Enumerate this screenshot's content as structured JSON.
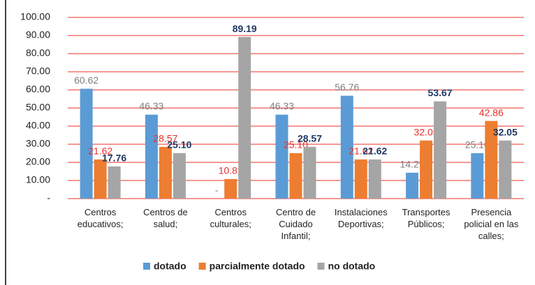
{
  "chart_data": {
    "type": "bar",
    "categories": [
      "Centros educativos;",
      "Centros de salud;",
      "Centros culturales;",
      "Centro de Cuidado Infantil;",
      "Instalaciones Deportivas;",
      "Transportes Públicos;",
      "Presencia policial en las calles;"
    ],
    "series": [
      {
        "name": "dotado",
        "color": "#5b9bd5",
        "label_color": "#7f7f7f",
        "values": [
          60.62,
          46.33,
          0,
          46.33,
          56.76,
          14.29,
          25.1
        ],
        "value_labels": [
          "60.62",
          "46.33",
          "-",
          "46.33",
          "56.76",
          "14.29",
          "25.10"
        ]
      },
      {
        "name": "parcialmente dotado",
        "color": "#ed7d31",
        "label_color": "#e8302a",
        "values": [
          21.62,
          28.57,
          10.81,
          25.1,
          21.62,
          32.05,
          42.86
        ],
        "value_labels": [
          "21.62",
          "28.57",
          "10.81",
          "25.10",
          "21.62",
          "32.05",
          "42.86"
        ]
      },
      {
        "name": "no dotado",
        "color": "#a5a5a5",
        "label_color": "#1f3864",
        "values": [
          17.76,
          25.1,
          89.19,
          28.57,
          21.62,
          53.67,
          32.05
        ],
        "value_labels": [
          "17.76",
          "25.10",
          "89.19",
          "28.57",
          "21.62",
          "53.67",
          "32.05"
        ]
      }
    ],
    "ylim": [
      0,
      100
    ],
    "yticks": [
      {
        "value": 0,
        "label": "-"
      },
      {
        "value": 10,
        "label": "10.00"
      },
      {
        "value": 20,
        "label": "20.00"
      },
      {
        "value": 30,
        "label": "30.00"
      },
      {
        "value": 40,
        "label": "40.00"
      },
      {
        "value": 50,
        "label": "50.00"
      },
      {
        "value": 60,
        "label": "60.00"
      },
      {
        "value": 70,
        "label": "70.00"
      },
      {
        "value": 80,
        "label": "80.00"
      },
      {
        "value": 90,
        "label": "90.00"
      },
      {
        "value": 100,
        "label": "100.00"
      }
    ],
    "grid": true,
    "grid_color": "#e8302a",
    "legend": "bottom"
  }
}
